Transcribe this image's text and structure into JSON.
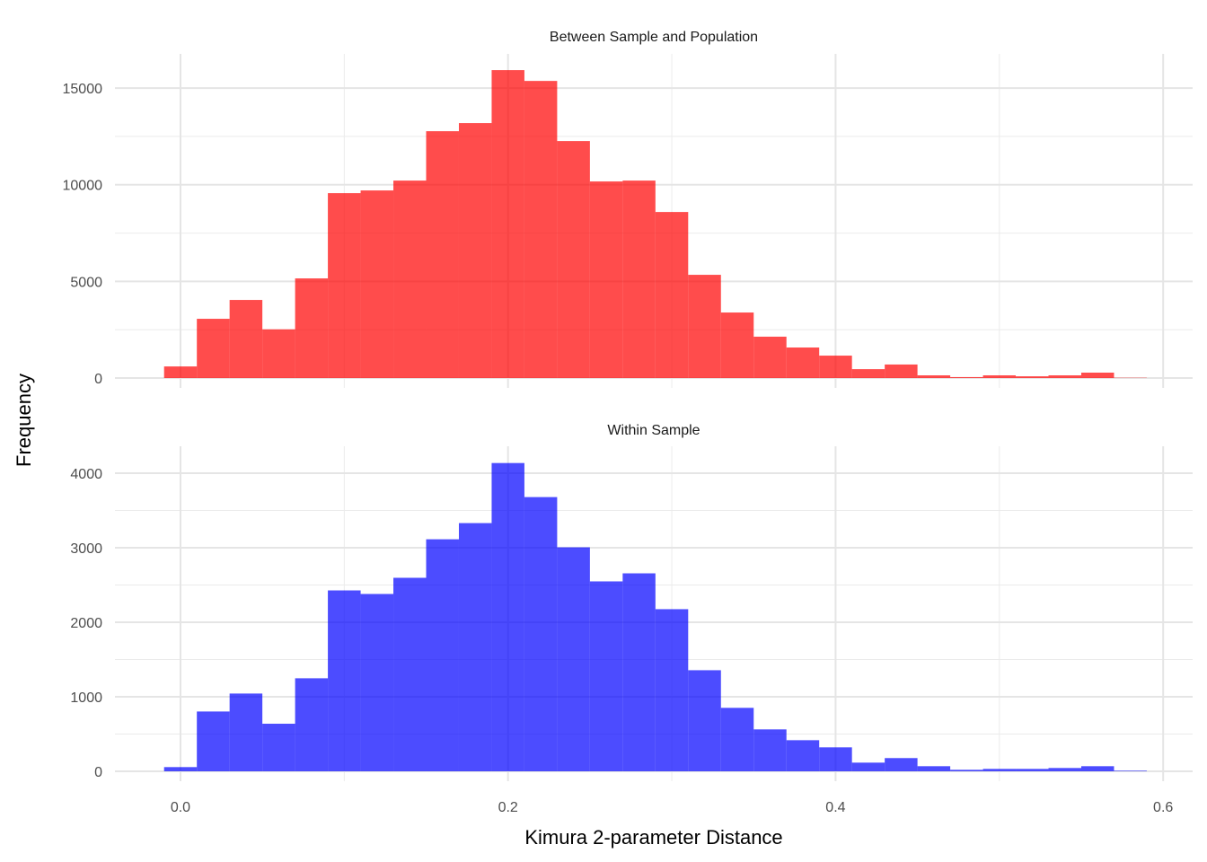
{
  "chart_data": {
    "type": "bar",
    "subtype": "faceted-histogram",
    "xlabel": "Kimura 2-parameter Distance",
    "ylabel": "Frequency",
    "x_ticks": [
      "0.0",
      "0.2",
      "0.4",
      "0.6"
    ],
    "x_tick_values": [
      0.0,
      0.2,
      0.4,
      0.6
    ],
    "xlim": [
      -0.04,
      0.618
    ],
    "bin_width": 0.02,
    "bin_centers": [
      0.0,
      0.02,
      0.04,
      0.06,
      0.08,
      0.1,
      0.12,
      0.14,
      0.16,
      0.18,
      0.2,
      0.22,
      0.24,
      0.26,
      0.28,
      0.3,
      0.32,
      0.34,
      0.36,
      0.38,
      0.4,
      0.42,
      0.44,
      0.46,
      0.48,
      0.5,
      0.52,
      0.54,
      0.56,
      0.58
    ],
    "grid": true,
    "panels": [
      {
        "title": "Between Sample and Population",
        "color": "#ff0000",
        "opacity": 0.7,
        "ylim": [
          -510,
          16770
        ],
        "y_ticks": [
          "0",
          "5000",
          "10000",
          "15000"
        ],
        "y_tick_values": [
          0,
          5000,
          10000,
          15000
        ],
        "values": [
          600,
          3065,
          4040,
          2520,
          5155,
          9565,
          9705,
          10215,
          12770,
          13190,
          15930,
          15370,
          12260,
          10170,
          10215,
          8590,
          5340,
          3390,
          2140,
          1580,
          1160,
          460,
          700,
          140,
          50,
          140,
          90,
          140,
          280,
          15
        ]
      },
      {
        "title": "Within Sample",
        "color": "#0000ff",
        "opacity": 0.7,
        "ylim": [
          -133,
          4361
        ],
        "y_ticks": [
          "0",
          "1000",
          "2000",
          "3000",
          "4000"
        ],
        "y_tick_values": [
          0,
          1000,
          2000,
          3000,
          4000
        ],
        "values": [
          56,
          802,
          1043,
          638,
          1248,
          2427,
          2379,
          2596,
          3113,
          3330,
          4136,
          3679,
          3005,
          2548,
          2656,
          2175,
          1356,
          851,
          562,
          417,
          321,
          116,
          177,
          68,
          20,
          32,
          32,
          44,
          68,
          8
        ]
      }
    ]
  }
}
